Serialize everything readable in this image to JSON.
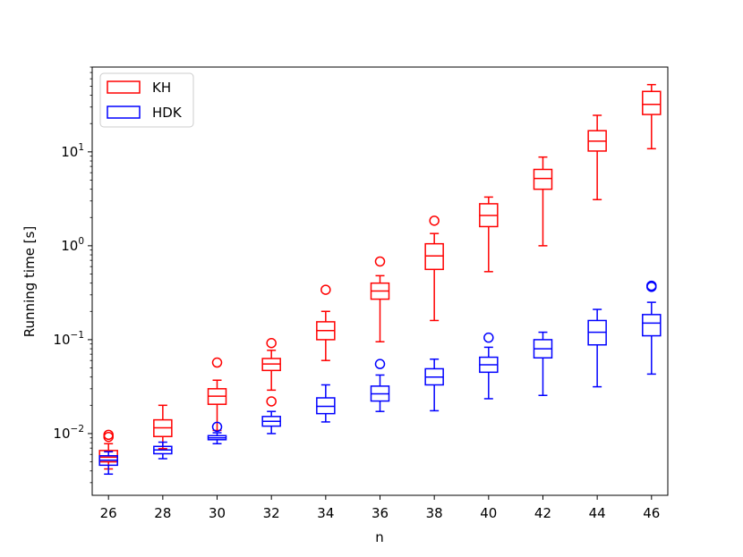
{
  "chart_data": {
    "type": "boxplot",
    "xlabel": "n",
    "ylabel": "Running time [s]",
    "yscale": "log",
    "ylim": [
      0.0022,
      80
    ],
    "xlim": [
      25.4,
      46.6
    ],
    "x_ticks": [
      "26",
      "28",
      "30",
      "32",
      "34",
      "36",
      "38",
      "40",
      "42",
      "44",
      "46"
    ],
    "y_ticks": [
      {
        "value": 0.01,
        "base": "10",
        "exp": "−2"
      },
      {
        "value": 0.1,
        "base": "10",
        "exp": "−1"
      },
      {
        "value": 1,
        "base": "10",
        "exp": "0"
      },
      {
        "value": 10,
        "base": "10",
        "exp": "1"
      }
    ],
    "legend": {
      "position": "top-left"
    },
    "series": [
      {
        "name": "KH",
        "color": "#ff0000",
        "boxes": [
          {
            "x": 26,
            "whislo": 0.0042,
            "q1": 0.005,
            "med": 0.0056,
            "q3": 0.0066,
            "whishi": 0.0078,
            "fliers": [
              0.0092,
              0.0097
            ]
          },
          {
            "x": 28,
            "whislo": 0.0069,
            "q1": 0.0093,
            "med": 0.0115,
            "q3": 0.014,
            "whishi": 0.02,
            "fliers": []
          },
          {
            "x": 30,
            "whislo": 0.0108,
            "q1": 0.0205,
            "med": 0.025,
            "q3": 0.03,
            "whishi": 0.037,
            "fliers": [
              0.057
            ]
          },
          {
            "x": 32,
            "whislo": 0.029,
            "q1": 0.047,
            "med": 0.055,
            "q3": 0.063,
            "whishi": 0.077,
            "fliers": [
              0.022,
              0.092
            ]
          },
          {
            "x": 34,
            "whislo": 0.06,
            "q1": 0.1,
            "med": 0.125,
            "q3": 0.155,
            "whishi": 0.2,
            "fliers": [
              0.34
            ]
          },
          {
            "x": 36,
            "whislo": 0.095,
            "q1": 0.27,
            "med": 0.33,
            "q3": 0.4,
            "whishi": 0.48,
            "fliers": [
              0.68
            ]
          },
          {
            "x": 38,
            "whislo": 0.16,
            "q1": 0.56,
            "med": 0.78,
            "q3": 1.05,
            "whishi": 1.35,
            "fliers": [
              1.85
            ]
          },
          {
            "x": 40,
            "whislo": 0.53,
            "q1": 1.6,
            "med": 2.1,
            "q3": 2.8,
            "whishi": 3.3,
            "fliers": []
          },
          {
            "x": 42,
            "whislo": 1.0,
            "q1": 4.0,
            "med": 5.2,
            "q3": 6.5,
            "whishi": 8.8,
            "fliers": []
          },
          {
            "x": 44,
            "whislo": 3.1,
            "q1": 10.2,
            "med": 13.0,
            "q3": 16.8,
            "whishi": 24.5,
            "fliers": []
          },
          {
            "x": 46,
            "whislo": 10.8,
            "q1": 25.0,
            "med": 32.0,
            "q3": 44.0,
            "whishi": 52.0,
            "fliers": []
          }
        ]
      },
      {
        "name": "HDK",
        "color": "#0000ff",
        "boxes": [
          {
            "x": 26,
            "whislo": 0.0037,
            "q1": 0.0046,
            "med": 0.0052,
            "q3": 0.0058,
            "whishi": 0.0064,
            "fliers": []
          },
          {
            "x": 28,
            "whislo": 0.0054,
            "q1": 0.0061,
            "med": 0.0067,
            "q3": 0.0073,
            "whishi": 0.0081,
            "fliers": []
          },
          {
            "x": 30,
            "whislo": 0.0078,
            "q1": 0.0086,
            "med": 0.009,
            "q3": 0.0095,
            "whishi": 0.0102,
            "fliers": [
              0.0118
            ]
          },
          {
            "x": 32,
            "whislo": 0.01,
            "q1": 0.012,
            "med": 0.0135,
            "q3": 0.0152,
            "whishi": 0.0172,
            "fliers": []
          },
          {
            "x": 34,
            "whislo": 0.0133,
            "q1": 0.0163,
            "med": 0.0195,
            "q3": 0.024,
            "whishi": 0.033,
            "fliers": []
          },
          {
            "x": 36,
            "whislo": 0.0172,
            "q1": 0.0222,
            "med": 0.0265,
            "q3": 0.032,
            "whishi": 0.042,
            "fliers": [
              0.055
            ]
          },
          {
            "x": 38,
            "whislo": 0.0175,
            "q1": 0.033,
            "med": 0.04,
            "q3": 0.049,
            "whishi": 0.062,
            "fliers": []
          },
          {
            "x": 40,
            "whislo": 0.0235,
            "q1": 0.045,
            "med": 0.054,
            "q3": 0.065,
            "whishi": 0.083,
            "fliers": [
              0.105
            ]
          },
          {
            "x": 42,
            "whislo": 0.0255,
            "q1": 0.064,
            "med": 0.08,
            "q3": 0.1,
            "whishi": 0.12,
            "fliers": []
          },
          {
            "x": 44,
            "whislo": 0.0315,
            "q1": 0.088,
            "med": 0.12,
            "q3": 0.16,
            "whishi": 0.21,
            "fliers": []
          },
          {
            "x": 46,
            "whislo": 0.043,
            "q1": 0.11,
            "med": 0.15,
            "q3": 0.185,
            "whishi": 0.25,
            "fliers": [
              0.365,
              0.375
            ]
          }
        ]
      }
    ]
  }
}
